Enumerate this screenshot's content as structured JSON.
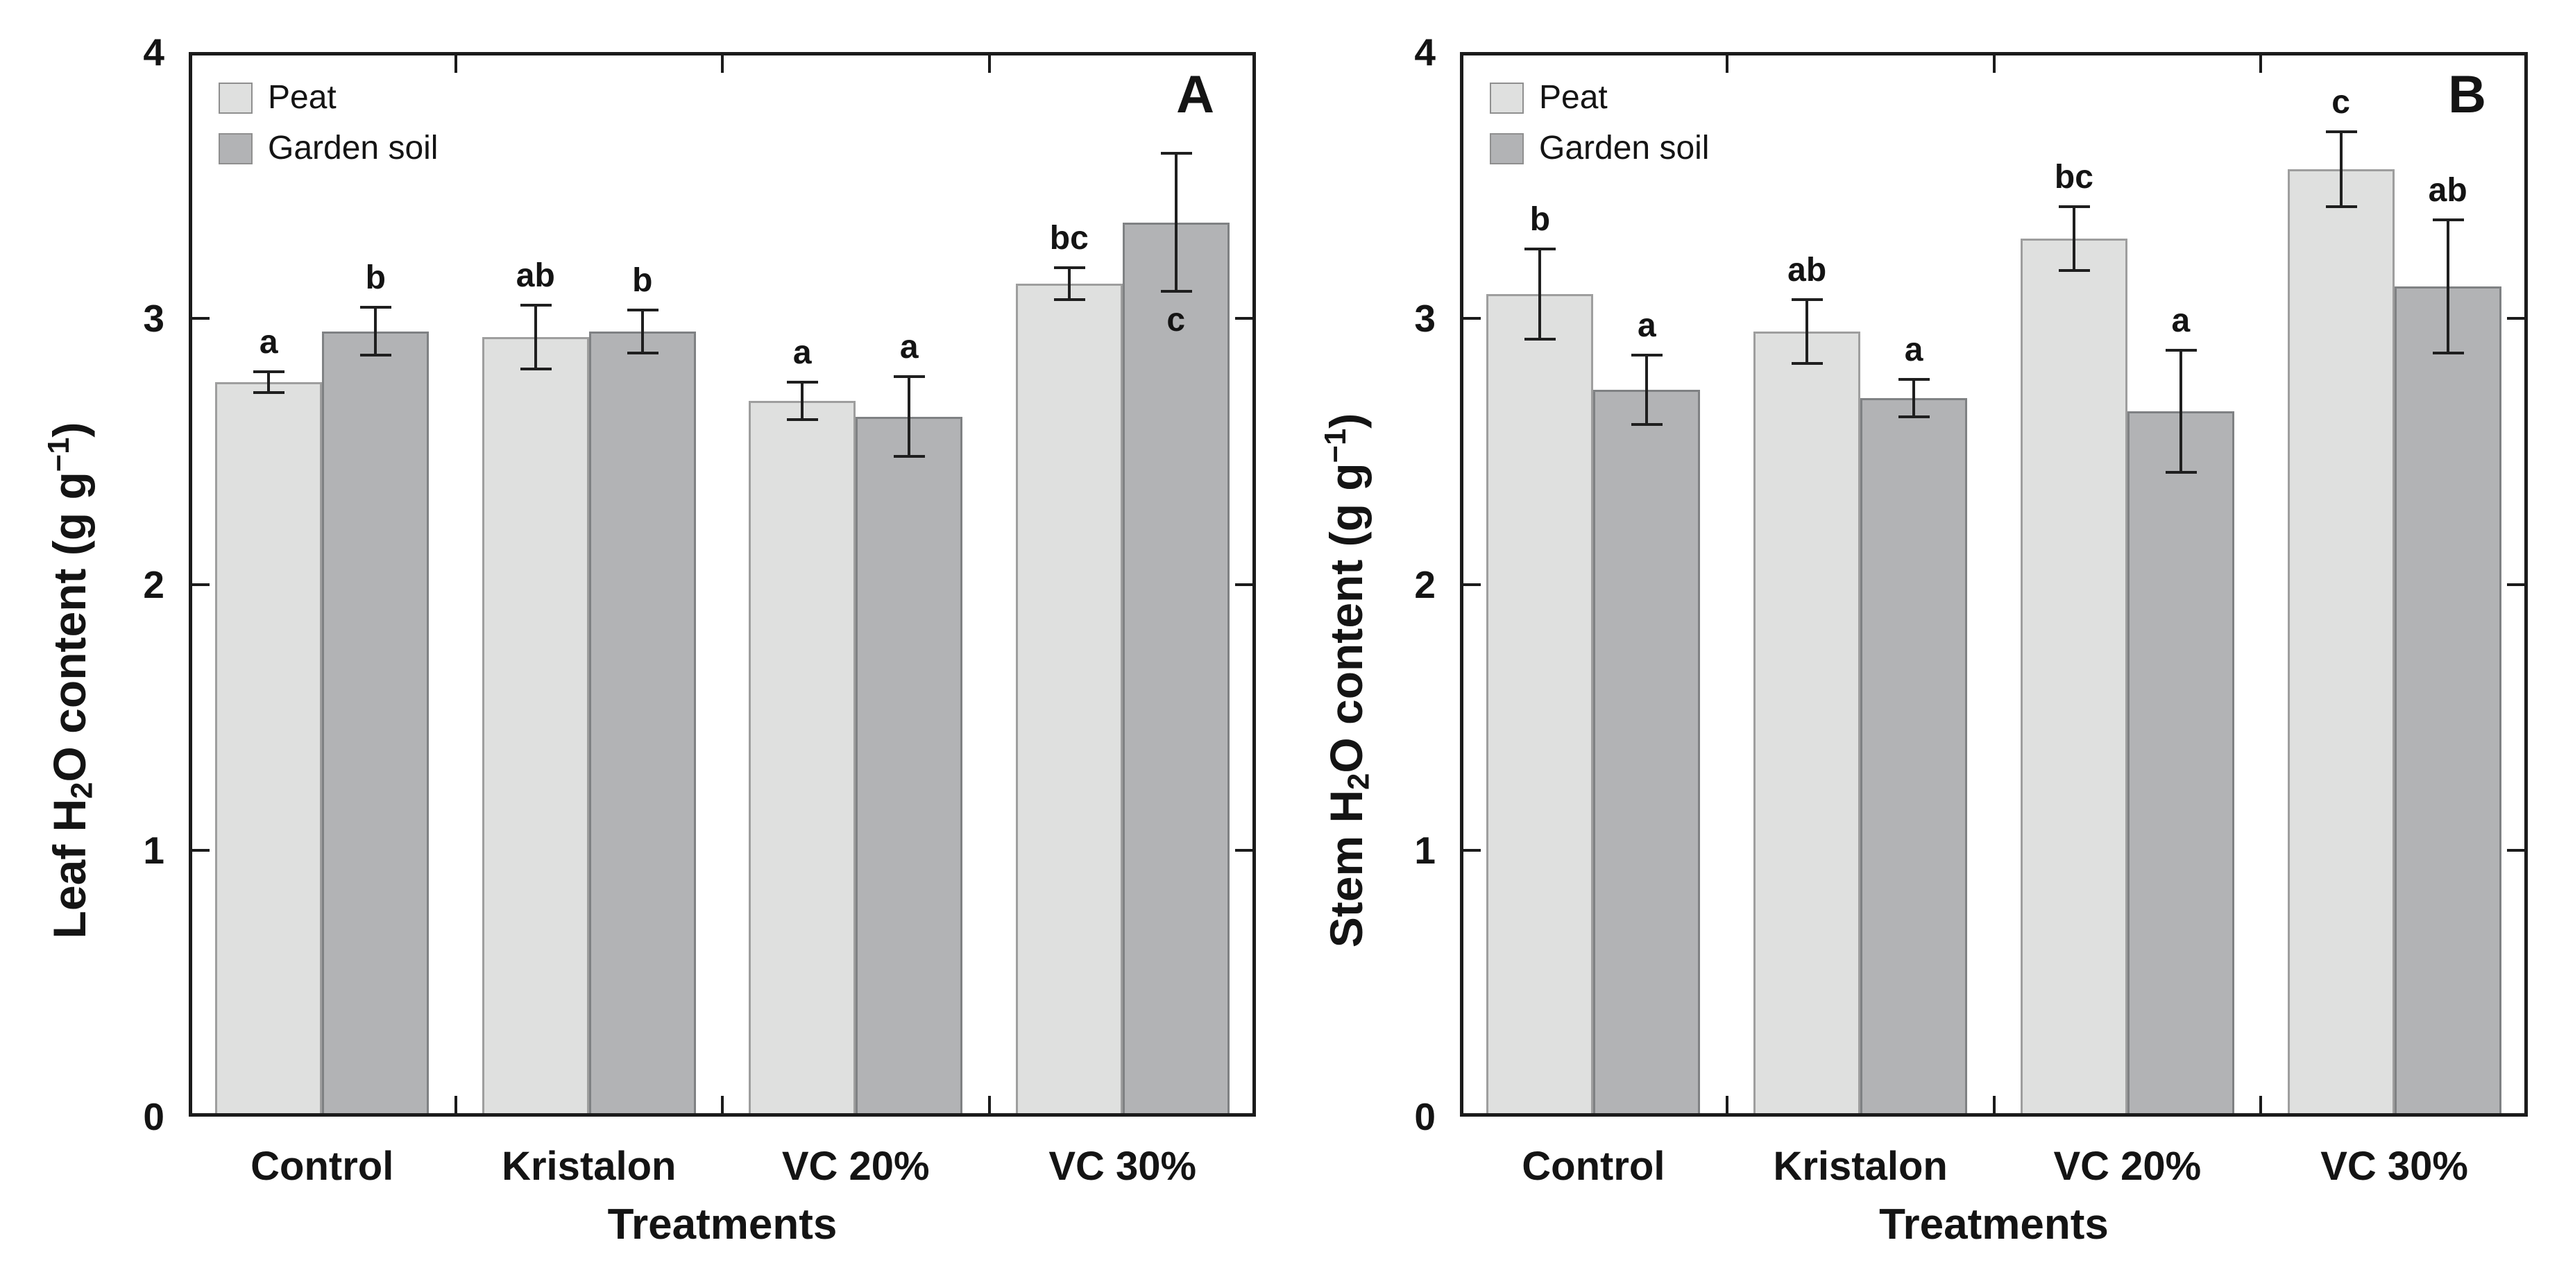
{
  "colors": {
    "peat_fill": "#dfe0df",
    "peat_border": "#9e9e9e",
    "garden_soil_fill": "#b2b3b5",
    "garden_soil_border": "#7f8183",
    "axis": "#1b1b1b",
    "error_bar": "#1f1f1f",
    "text": "#141414",
    "background": "#ffffff"
  },
  "legend": [
    "Peat",
    "Garden soil"
  ],
  "chart_data": [
    {
      "type": "bar",
      "panel_label": "A",
      "ylabel_text": "Leaf H2O content (g g−1)",
      "ylabel_parts": {
        "pre": "Leaf H",
        "sub": "2",
        "mid": "O content (g g",
        "sup": "−1",
        "post": ")"
      },
      "xlabel": "Treatments",
      "categories": [
        "Control",
        "Kristalon",
        "VC 20%",
        "VC 30%"
      ],
      "ylim": [
        0,
        4
      ],
      "yticks": [
        0,
        1,
        2,
        3,
        4
      ],
      "grid": false,
      "legend_position": "upper-left-inside",
      "series": [
        {
          "name": "Peat",
          "color": "#dfe0df",
          "border_color": "#9e9e9e",
          "values": [
            2.76,
            2.93,
            2.69,
            3.13
          ],
          "errors": [
            0.04,
            0.12,
            0.07,
            0.06
          ],
          "sig_letters": [
            "a",
            "ab",
            "a",
            "bc"
          ],
          "sig_below": [
            false,
            false,
            false,
            false
          ]
        },
        {
          "name": "Garden soil",
          "color": "#b2b3b5",
          "border_color": "#7f8183",
          "values": [
            2.95,
            2.95,
            2.63,
            3.36
          ],
          "errors": [
            0.09,
            0.08,
            0.15,
            0.26
          ],
          "sig_letters": [
            "b",
            "b",
            "a",
            "c"
          ],
          "sig_below": [
            false,
            false,
            false,
            true
          ]
        }
      ]
    },
    {
      "type": "bar",
      "panel_label": "B",
      "ylabel_text": "Stem H2O content (g g−1)",
      "ylabel_parts": {
        "pre": "Stem H",
        "sub": "2",
        "mid": "O content (g g",
        "sup": "−1",
        "post": ")"
      },
      "xlabel": "Treatments",
      "categories": [
        "Control",
        "Kristalon",
        "VC 20%",
        "VC 30%"
      ],
      "ylim": [
        0,
        4
      ],
      "yticks": [
        0,
        1,
        2,
        3,
        4
      ],
      "grid": false,
      "legend_position": "upper-left-inside",
      "series": [
        {
          "name": "Peat",
          "color": "#dfe0df",
          "border_color": "#9e9e9e",
          "values": [
            3.09,
            2.95,
            3.3,
            3.56
          ],
          "errors": [
            0.17,
            0.12,
            0.12,
            0.14
          ],
          "sig_letters": [
            "b",
            "ab",
            "bc",
            "c"
          ],
          "sig_below": [
            false,
            false,
            false,
            false
          ]
        },
        {
          "name": "Garden soil",
          "color": "#b2b3b5",
          "border_color": "#7f8183",
          "values": [
            2.73,
            2.7,
            2.65,
            3.12
          ],
          "errors": [
            0.13,
            0.07,
            0.23,
            0.25
          ],
          "sig_letters": [
            "a",
            "a",
            "a",
            "ab"
          ],
          "sig_below": [
            false,
            false,
            false,
            false
          ]
        }
      ]
    }
  ]
}
